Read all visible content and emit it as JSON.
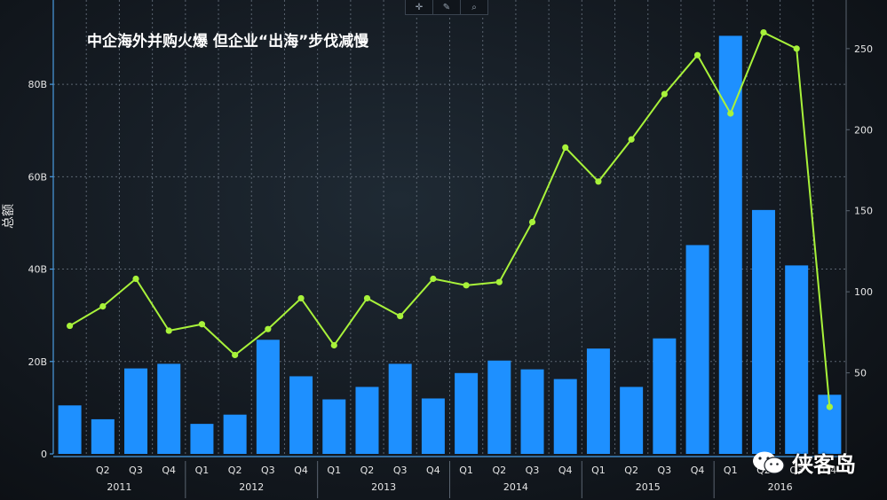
{
  "toolbar": {
    "items": [
      "crosshair-icon",
      "pen-icon",
      "search-icon"
    ]
  },
  "watermark": {
    "text": "侠客岛"
  },
  "chart_data": {
    "type": "bar",
    "title": "中企海外并购火爆 但企业“出海”步伐减慢",
    "ylabel_left": "总额",
    "ylabel_right": "",
    "categories": [
      "2011 Q1",
      "2011 Q2",
      "2011 Q3",
      "2011 Q4",
      "2012 Q1",
      "2012 Q2",
      "2012 Q3",
      "2012 Q4",
      "2013 Q1",
      "2013 Q2",
      "2013 Q3",
      "2013 Q4",
      "2014 Q1",
      "2014 Q2",
      "2014 Q3",
      "2014 Q4",
      "2015 Q1",
      "2015 Q2",
      "2015 Q3",
      "2015 Q4",
      "2016 Q1",
      "2016 Q2",
      "2016 Q3",
      "2016 Q4"
    ],
    "quarter_labels": [
      "",
      "Q2",
      "Q3",
      "Q4",
      "Q1",
      "Q2",
      "Q3",
      "Q4",
      "Q1",
      "Q2",
      "Q3",
      "Q4",
      "Q1",
      "Q2",
      "Q3",
      "Q4",
      "Q1",
      "Q2",
      "Q3",
      "Q4",
      "Q1",
      "Q2",
      "Q3",
      "Q4"
    ],
    "year_labels": [
      {
        "year": "2011",
        "first_index": 0,
        "last_index": 3
      },
      {
        "year": "2012",
        "first_index": 4,
        "last_index": 7
      },
      {
        "year": "2013",
        "first_index": 8,
        "last_index": 11
      },
      {
        "year": "2014",
        "first_index": 12,
        "last_index": 15
      },
      {
        "year": "2015",
        "first_index": 16,
        "last_index": 19
      },
      {
        "year": "2016",
        "first_index": 20,
        "last_index": 23
      }
    ],
    "series": [
      {
        "type": "bar",
        "axis": "left",
        "color": "#1e90ff",
        "values": [
          10.5,
          7.5,
          18.5,
          19.5,
          6.5,
          8.5,
          24.7,
          16.8,
          11.8,
          14.5,
          19.5,
          12.0,
          17.5,
          20.2,
          18.3,
          16.2,
          22.8,
          14.5,
          25.0,
          45.2,
          90.5,
          52.8,
          40.8,
          12.8
        ]
      },
      {
        "type": "line",
        "axis": "right",
        "color": "#a8f23a",
        "values": [
          79,
          91,
          108,
          76,
          80,
          61,
          77,
          96,
          67,
          96,
          85,
          108,
          104,
          106,
          143,
          189,
          168,
          194,
          222,
          246,
          210,
          260,
          250,
          29
        ]
      }
    ],
    "y_left": {
      "min": 0,
      "max": 90,
      "ticks": [
        0,
        20,
        40,
        60,
        80
      ],
      "tick_labels": [
        "0",
        "20B",
        "40B",
        "60B",
        "80B"
      ]
    },
    "y_right": {
      "min": 0,
      "max": 280,
      "ticks": [
        50,
        100,
        150,
        200,
        250
      ],
      "tick_labels": [
        "50",
        "100",
        "150",
        "200",
        "250"
      ]
    },
    "grid": true,
    "legend": "none"
  },
  "colors": {
    "background": "#141a21",
    "grid": "#5a6470",
    "axis": "#4a9be0",
    "text": "#ffffff",
    "tick_text": "#e6e6e6"
  }
}
